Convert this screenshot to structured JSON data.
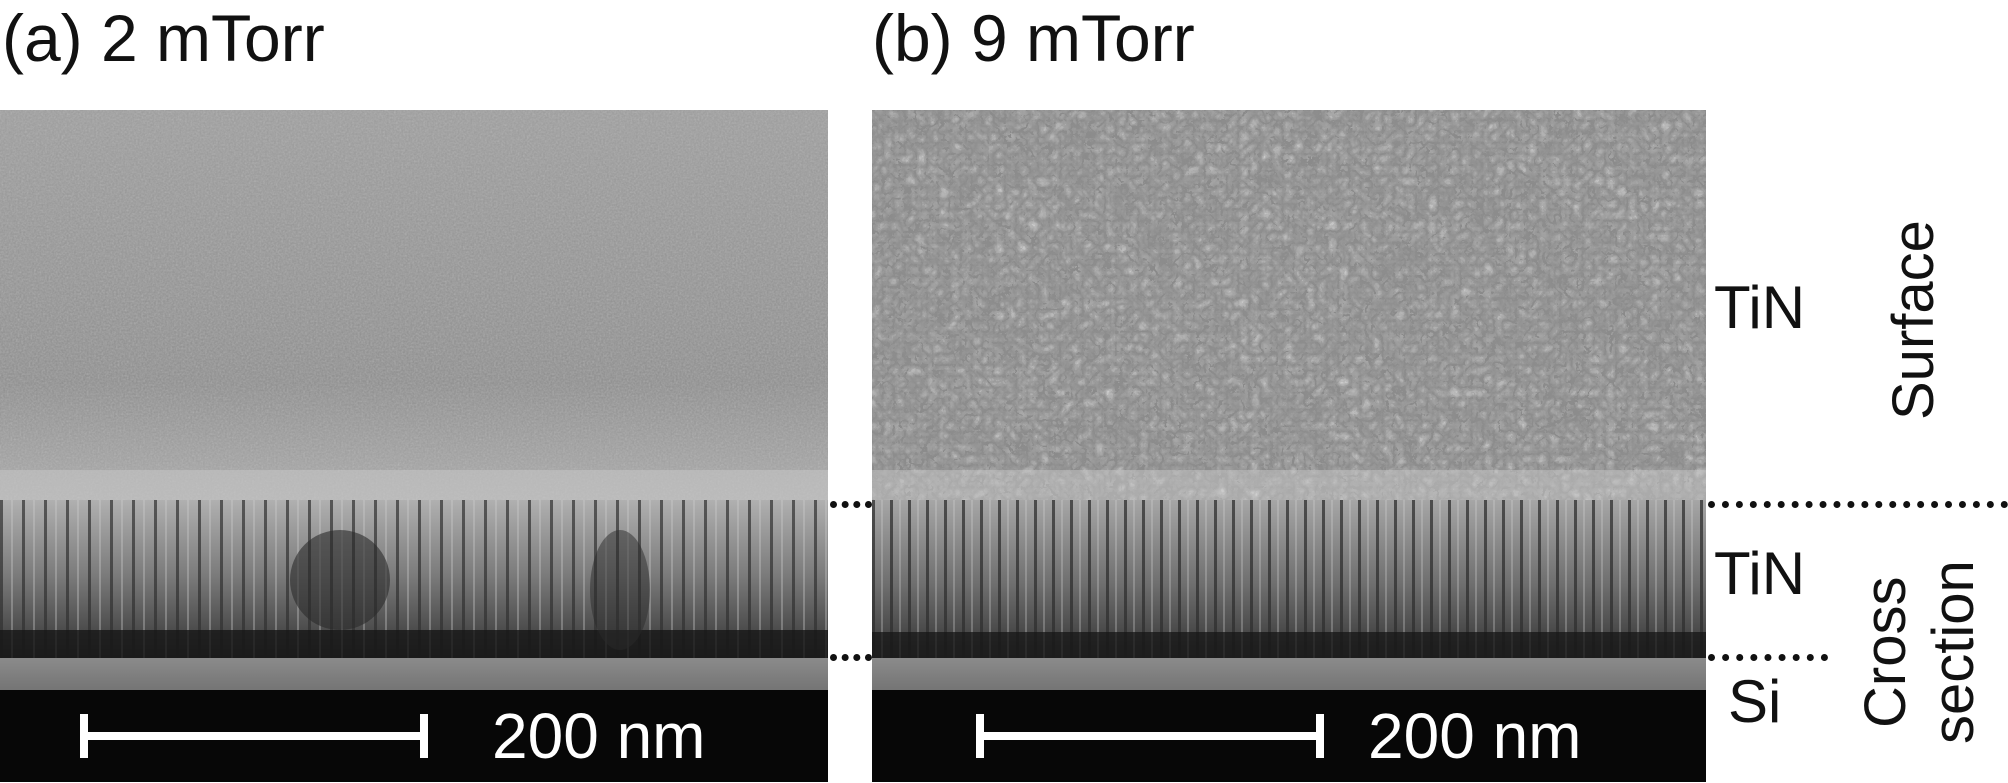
{
  "panels": [
    {
      "title": "(a) 2 mTorr",
      "scale_label": "200 nm"
    },
    {
      "title": "(b) 9 mTorr",
      "scale_label": "200 nm"
    }
  ],
  "annotations": {
    "surface_layer": "TiN",
    "cross_layer": "TiN",
    "substrate": "Si",
    "surface_region": "Surface",
    "cross_region_line1": "Cross",
    "cross_region_line2": "section"
  },
  "colors": {
    "background": "#ffffff",
    "scalebar_bg": "#070707",
    "scalebar_fg": "#ffffff",
    "text": "#111111"
  }
}
